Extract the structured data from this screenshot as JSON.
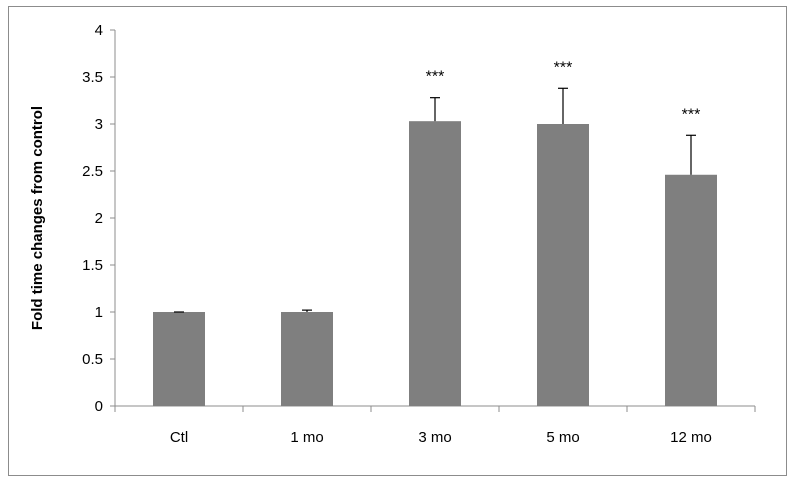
{
  "chart_data": {
    "type": "bar",
    "title": "",
    "xlabel": "",
    "ylabel": "Fold time changes from control",
    "ylim": [
      0,
      4
    ],
    "yticks": [
      "0",
      "0.5",
      "1",
      "1.5",
      "2",
      "2.5",
      "3",
      "3.5",
      "4"
    ],
    "grid": false,
    "legend": "none",
    "categories": [
      "Ctl",
      "1 mo",
      "3 mo",
      "5 mo",
      "12 mo"
    ],
    "values": [
      1.0,
      1.0,
      3.03,
      3.0,
      2.46
    ],
    "errors": [
      0.0,
      0.02,
      0.25,
      0.38,
      0.42
    ],
    "significance": [
      "",
      "",
      "***",
      "***",
      "***"
    ],
    "bar_color": "#7f7f7f"
  }
}
